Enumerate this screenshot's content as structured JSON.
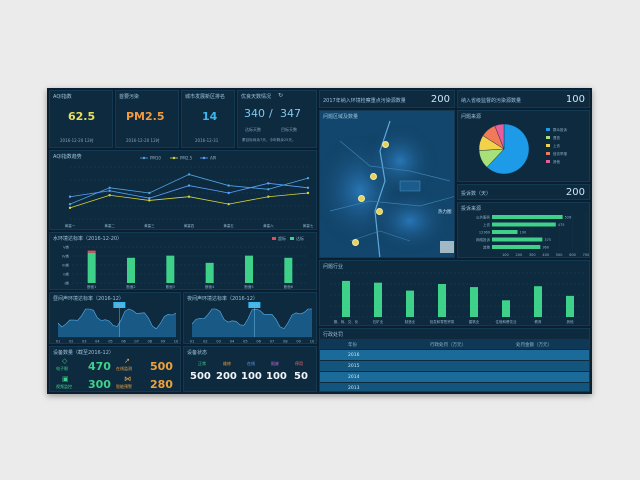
{
  "top": {
    "aqi": {
      "title": "AQI指数",
      "value": "62.5",
      "date": "2016-12-20 12时"
    },
    "pollutant": {
      "title": "首要污染",
      "value": "PM2.5",
      "date": "2016-12-20 12时"
    },
    "rank": {
      "title": "城市发展新区排名",
      "value": "14",
      "date": "2016-12-31"
    },
    "good": {
      "title": "优良天数情况",
      "v1": "340",
      "sep": "/",
      "v2": "347",
      "l1": "达标天数",
      "l2": "目标天数",
      "note": "累目标尚余7天，今年剩余25天。"
    }
  },
  "aqi_trend": {
    "title": "AQI指数趋势",
    "legend": [
      "PM10",
      "PM2.5",
      "API"
    ],
    "colors": [
      "#4fa3e0",
      "#d4d43a",
      "#5aa0ff"
    ],
    "categories": [
      "黄塞一",
      "黄塞二",
      "黄塞三",
      "黄塞四",
      "黄塞五",
      "黄塞六",
      "黄塞七"
    ],
    "series": [
      {
        "name": "PM10",
        "values": [
          20,
          42,
          35,
          60,
          45,
          40,
          55
        ]
      },
      {
        "name": "PM2.5",
        "values": [
          15,
          32,
          25,
          30,
          20,
          30,
          35
        ]
      },
      {
        "name": "API",
        "values": [
          30,
          38,
          28,
          45,
          35,
          48,
          42
        ]
      }
    ],
    "ylim": [
      0,
      70
    ]
  },
  "water": {
    "title": "水环境达标率（2016-12-20）",
    "legend": [
      "超标",
      "达标"
    ],
    "yticks": [
      "V类",
      "IV类",
      "III类",
      "II类",
      "I类"
    ],
    "categories": [
      "断面1",
      "断面2",
      "断面3",
      "断面4",
      "断面5",
      "断面6"
    ],
    "values": [
      4.2,
      3.5,
      3.8,
      2.8,
      3.8,
      3.5
    ],
    "exceed": [
      0.3,
      0,
      0,
      0,
      0,
      0
    ],
    "ylim": [
      0,
      5
    ]
  },
  "noise_day": {
    "title": "昼间声环境达标率（2016-12）",
    "marker": "55.3",
    "x": [
      "01",
      "02",
      "03",
      "04",
      "05",
      "06",
      "07",
      "08",
      "09",
      "10"
    ]
  },
  "noise_night": {
    "title": "夜间声环境达标率（2016-12）",
    "marker": "44.5",
    "x": [
      "01",
      "02",
      "03",
      "04",
      "05",
      "06",
      "07",
      "08",
      "09",
      "10"
    ]
  },
  "devices": {
    "title": "设备数量（截至2016-12）",
    "items": [
      {
        "label": "电子眼",
        "value": "470",
        "color": "#3fd08a"
      },
      {
        "label": "在线监测",
        "value": "500",
        "color": "#f0a23a"
      },
      {
        "label": "视频监控",
        "value": "300",
        "color": "#3fd08a"
      },
      {
        "label": "智能预警",
        "value": "280",
        "color": "#f0a23a"
      }
    ]
  },
  "device_status": {
    "title": "设备状态",
    "labels": [
      "正常",
      "维修",
      "在线",
      "报废",
      "停用"
    ],
    "label_colors": [
      "#3fd08a",
      "#f0a23a",
      "#5aa0ff",
      "#c070e0",
      "#ff6a6a"
    ],
    "values": [
      "500",
      "200",
      "100",
      "100",
      "50"
    ]
  },
  "source": {
    "title": "2017年纳入环境检察重点污染源数量",
    "value": "200"
  },
  "supervise": {
    "title": "纳入省级监督的污染源数量",
    "value": "100"
  },
  "map": {
    "title": "问题区域及数量",
    "sub": "热力图"
  },
  "issue_source": {
    "title": "问题来源",
    "legend": [
      "群众投诉",
      "督查",
      "上访",
      "信访举报",
      "其他"
    ],
    "colors": [
      "#1e9be8",
      "#a8e07a",
      "#f3d14b",
      "#f07a5a",
      "#e95d9b"
    ],
    "values": [
      62,
      12,
      10,
      10,
      6
    ]
  },
  "complaints": {
    "title": "投诉数（天）",
    "value": "200"
  },
  "complaint_src": {
    "title": "投诉来源",
    "categories": [
      "公共服务",
      "上访",
      "12369",
      "网络投诉",
      "其他"
    ],
    "values": [
      526,
      475,
      190,
      375,
      360
    ],
    "labels": [
      "526",
      "475",
      "190",
      "375",
      "360"
    ],
    "xticks": [
      "100",
      "200",
      "300",
      "400",
      "500",
      "600",
      "700"
    ],
    "xlim": [
      0,
      700
    ]
  },
  "industry": {
    "title": "问题行业",
    "categories": [
      "服、商、交、化",
      "石矿业",
      "制造业",
      "批发和零售贸易",
      "建筑业",
      "住宿和餐饮业",
      "教育",
      "其他"
    ],
    "values": [
      82,
      78,
      60,
      75,
      68,
      38,
      70,
      48
    ],
    "ylim": [
      0,
      100
    ]
  },
  "penalty": {
    "title": "行政处罚",
    "headers": [
      "年份",
      "行政处罚（万元）",
      "处罚金额（万元）"
    ],
    "rows": [
      {
        "year": "2016",
        "a": "",
        "b": ""
      },
      {
        "year": "2015",
        "a": "",
        "b": ""
      },
      {
        "year": "2014",
        "a": "",
        "b": ""
      },
      {
        "year": "2013",
        "a": "",
        "b": ""
      }
    ]
  }
}
